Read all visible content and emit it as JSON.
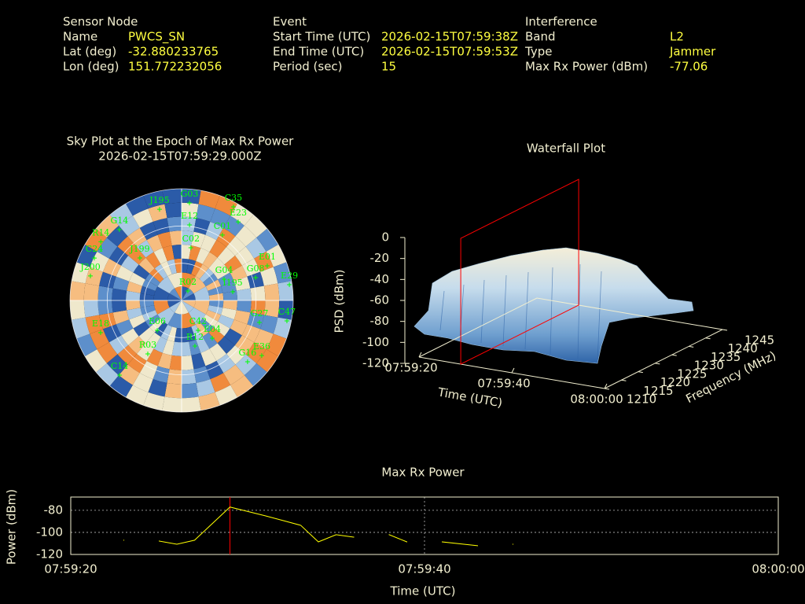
{
  "info": {
    "columns": [
      {
        "title": "Sensor Node",
        "rows": [
          {
            "label": "Name",
            "value": "PWCS_SN"
          },
          {
            "label": "Lat (deg)",
            "value": -32.880233765
          },
          {
            "label": "Lon (deg)",
            "value": 151.772232056
          }
        ]
      },
      {
        "title": "Event",
        "rows": [
          {
            "label": "Start Time (UTC)",
            "value": "2026-02-15T07:59:38Z"
          },
          {
            "label": "End Time (UTC)",
            "value": "2026-02-15T07:59:53Z"
          },
          {
            "label": "Period (sec)",
            "value": 15
          }
        ]
      },
      {
        "title": "Interference",
        "rows": [
          {
            "label": "Band",
            "value": "L2"
          },
          {
            "label": "Type",
            "value": "Jammer"
          },
          {
            "label": "Max Rx Power (dBm)",
            "value": -77.06
          }
        ]
      }
    ]
  },
  "chart_data": [
    {
      "type": "polar-scatter",
      "title": "Sky Plot at the Epoch of Max Rx Power",
      "subtitle": "2026-02-15T07:59:29.000Z",
      "color": "#00ff00",
      "satellites": [
        {
          "name": "G03",
          "azimuth": 4.6,
          "elevation": 11.2
        },
        {
          "name": "C35",
          "azimuth": 29,
          "elevation": 3.8
        },
        {
          "name": "J195",
          "azimuth": 346.4,
          "elevation": 14.4
        },
        {
          "name": "E12",
          "azimuth": 6,
          "elevation": 28.8
        },
        {
          "name": "E23",
          "azimuth": 35.8,
          "elevation": 12
        },
        {
          "name": "G14",
          "azimuth": 318.7,
          "elevation": 14
        },
        {
          "name": "C01",
          "azimuth": 32,
          "elevation": 27.9
        },
        {
          "name": "C02",
          "azimuth": 10,
          "elevation": 46.9
        },
        {
          "name": "R14",
          "azimuth": 306,
          "elevation": 9.5
        },
        {
          "name": "C24",
          "azimuth": 295.9,
          "elevation": 11.8
        },
        {
          "name": "J199",
          "azimuth": 315.5,
          "elevation": 42
        },
        {
          "name": "E01",
          "azimuth": 68,
          "elevation": 15.5
        },
        {
          "name": "J200",
          "azimuth": 285,
          "elevation": 13.9
        },
        {
          "name": "G04",
          "azimuth": 63.4,
          "elevation": 51.7
        },
        {
          "name": "G08",
          "azimuth": 72.9,
          "elevation": 27.6
        },
        {
          "name": "E29",
          "azimuth": 81.7,
          "elevation": 2.2
        },
        {
          "name": "R02",
          "azimuth": 33.7,
          "elevation": 80.9
        },
        {
          "name": "I195",
          "azimuth": 80.4,
          "elevation": 48.2
        },
        {
          "name": "G27",
          "azimuth": 105.8,
          "elevation": 24.8
        },
        {
          "name": "C47",
          "azimuth": 101,
          "elevation": 3.5
        },
        {
          "name": "E18",
          "azimuth": 248.3,
          "elevation": 19.7
        },
        {
          "name": "C42",
          "azimuth": 151.1,
          "elevation": 62.5
        },
        {
          "name": "E04",
          "azimuth": 140.9,
          "elevation": 50.8
        },
        {
          "name": "R12",
          "azimuth": 163.7,
          "elevation": 51.7
        },
        {
          "name": "R03",
          "azimuth": 212.3,
          "elevation": 39
        },
        {
          "name": "E36",
          "azimuth": 124.5,
          "elevation": 11.6
        },
        {
          "name": "G16",
          "azimuth": 132.9,
          "elevation": 17.4
        },
        {
          "name": "C14",
          "azimuth": 219.7,
          "elevation": 11.7
        },
        {
          "name": "E06",
          "azimuth": 219.2,
          "elevation": 58.9
        }
      ]
    },
    {
      "type": "surface3d",
      "title": "Waterfall Plot",
      "xlabel": "Time (UTC)",
      "ylabel": "Frequency (MHz)",
      "zlabel": "PSD (dBm)",
      "xlim": [
        "07:59:20",
        "08:00:00"
      ],
      "xticks": [
        "07:59:20",
        "07:59:40",
        "08:00:00"
      ],
      "ylim": [
        1210,
        1245
      ],
      "yticks": [
        1210,
        1215,
        1220,
        1225,
        1230,
        1235,
        1240,
        1245
      ],
      "zlim": [
        -120,
        0
      ],
      "zticks": [
        0,
        -20,
        -40,
        -60,
        -80,
        -100,
        -120
      ],
      "marker_x": "07:59:29",
      "marker_color": "#ff0000"
    },
    {
      "type": "line",
      "title": "Max Rx Power",
      "xlabel": "Time (UTC)",
      "ylabel": "Power (dBm)",
      "xlim": [
        "07:59:20",
        "08:00:00"
      ],
      "xticks": [
        "07:59:20",
        "07:59:40",
        "08:00:00"
      ],
      "ylim": [
        -120,
        -68
      ],
      "yticks": [
        -80,
        -100,
        -120
      ],
      "grid": true,
      "marker_x": "07:59:29",
      "marker_color": "#ff0000",
      "series": [
        {
          "color": "#ffff00",
          "x": [
            "07:59:23",
            "07:59:24",
            "07:59:25",
            "07:59:26",
            "07:59:27",
            "07:59:29",
            "07:59:31",
            "07:59:32",
            "07:59:33",
            "07:59:34",
            "07:59:35",
            "07:59:36",
            "07:59:37",
            "07:59:38",
            "07:59:39",
            "07:59:40",
            "07:59:41",
            "07:59:43",
            "07:59:44",
            "07:59:45"
          ],
          "values": [
            -107.1,
            null,
            -107.9,
            -110.7,
            -107.1,
            -77.06,
            -85,
            -89.3,
            -93.6,
            -108.6,
            -102.1,
            -104.3,
            null,
            -102.1,
            -108.6,
            null,
            -108.6,
            -112.1,
            null,
            -110.7
          ]
        }
      ]
    }
  ]
}
